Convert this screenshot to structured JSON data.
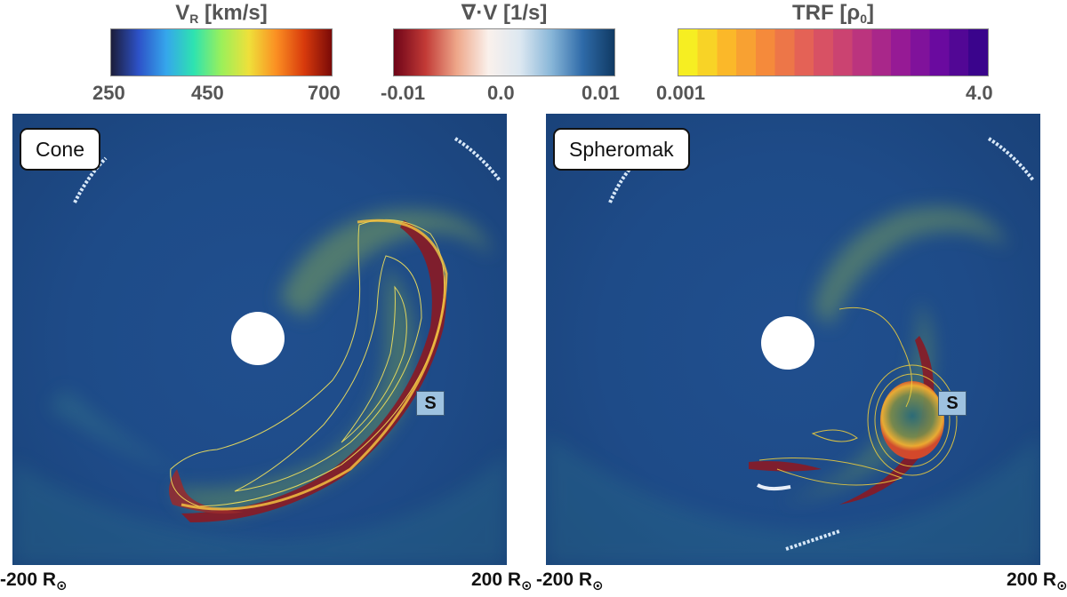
{
  "colorbars": [
    {
      "title_main": "V",
      "title_sub": "R",
      "title_rest": " [km/s]",
      "ticks": [
        "250",
        "450",
        "700"
      ],
      "colormap": "turbo",
      "colors": [
        "#1c1d3a",
        "#2d52c8",
        "#35a6ec",
        "#2ee3b0",
        "#9bf05a",
        "#efe03a",
        "#fb8e22",
        "#d83a0c",
        "#7a0a08"
      ]
    },
    {
      "title_main": "∇·V [1/s]",
      "ticks": [
        "-0.01",
        "0.0",
        "0.01"
      ],
      "colormap": "diverging red-white-blue",
      "colors": [
        "#6e0418",
        "#c23a36",
        "#eea78a",
        "#faf1ec",
        "#dde8f1",
        "#88b6d8",
        "#2e6aa8",
        "#103a63"
      ]
    },
    {
      "title_main": "TRF [ρ",
      "title_sub": "0",
      "title_rest": "]",
      "ticks": [
        "0.001",
        "4.0"
      ],
      "colormap": "plasma (stepped)",
      "colors": [
        "#f6ee22",
        "#fbb42a",
        "#f4843e",
        "#e05a5c",
        "#c33a79",
        "#9c1d93",
        "#6d0aa0",
        "#3a048c"
      ]
    }
  ],
  "panels": [
    {
      "name": "Cone",
      "marker": "S",
      "axis_left": "-200 R",
      "axis_right": "200 R",
      "sun_symbol": "⊙"
    },
    {
      "name": "Spheromak",
      "marker": "S",
      "axis_left": "-200 R",
      "axis_right": "200 R",
      "sun_symbol": "⊙"
    }
  ],
  "colors": {
    "background_field": "#1f4e8c",
    "outer_field": "#1a4279",
    "stream_green": "#6f9a5a",
    "shock_red": "#8a1a24",
    "sun_disk": "#ffffff"
  }
}
